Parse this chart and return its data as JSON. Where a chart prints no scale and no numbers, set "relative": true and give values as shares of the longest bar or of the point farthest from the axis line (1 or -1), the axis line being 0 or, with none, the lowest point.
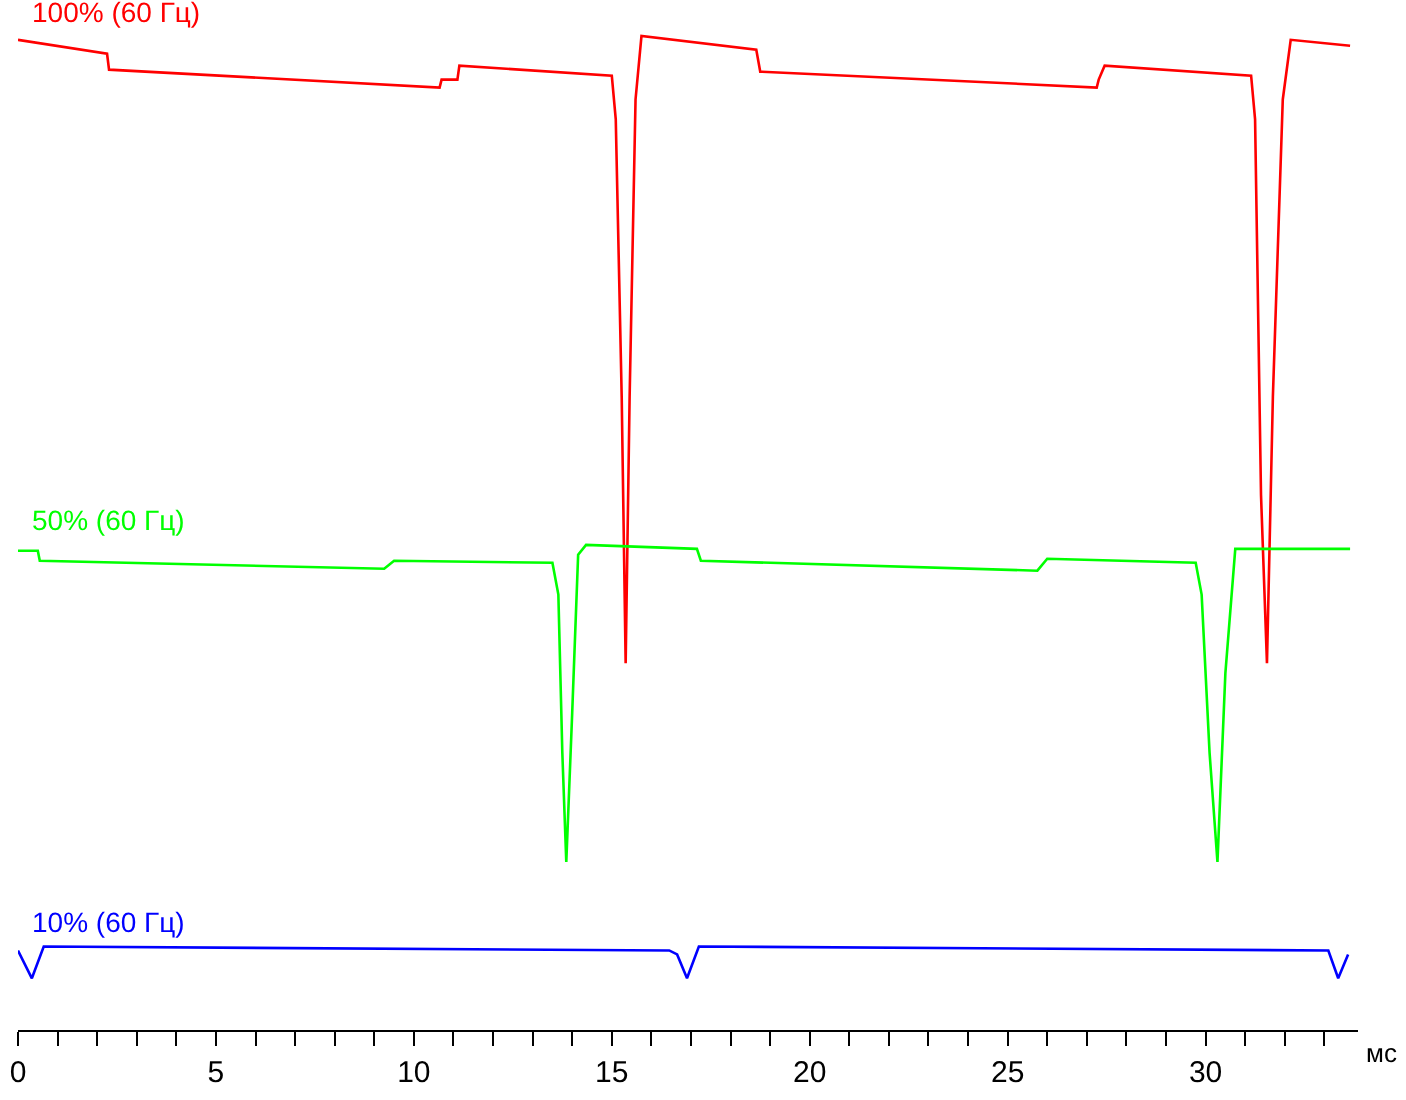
{
  "chart_data": {
    "type": "line",
    "relative": true,
    "xlabel": "мс",
    "legend": false,
    "marker": "none",
    "line_style": "solid",
    "xlim": [
      0,
      33.85
    ],
    "xticks": [
      0,
      {
        "value": 1,
        "label": null
      },
      {
        "value": 2,
        "label": null
      },
      {
        "value": 3,
        "label": null
      },
      {
        "value": 4,
        "label": null
      },
      5,
      {
        "value": 6,
        "label": null
      },
      {
        "value": 7,
        "label": null
      },
      {
        "value": 8,
        "label": null
      },
      {
        "value": 9,
        "label": null
      },
      10,
      {
        "value": 11,
        "label": null
      },
      {
        "value": 12,
        "label": null
      },
      {
        "value": 13,
        "label": null
      },
      {
        "value": 14,
        "label": null
      },
      15,
      {
        "value": 16,
        "label": null
      },
      {
        "value": 17,
        "label": null
      },
      {
        "value": 18,
        "label": null
      },
      {
        "value": 19,
        "label": null
      },
      20,
      {
        "value": 21,
        "label": null
      },
      {
        "value": 22,
        "label": null
      },
      {
        "value": 23,
        "label": null
      },
      {
        "value": 24,
        "label": null
      },
      25,
      {
        "value": 26,
        "label": null
      },
      {
        "value": 27,
        "label": null
      },
      {
        "value": 28,
        "label": null
      },
      {
        "value": 29,
        "label": null
      },
      30,
      {
        "value": 31,
        "label": null
      },
      {
        "value": 32,
        "label": null
      },
      {
        "value": 33,
        "label": null
      }
    ],
    "series": [
      {
        "name": "100% (60 Гц)",
        "color": "#ff0000",
        "x": [
          0,
          2.25,
          2.3,
          10.65,
          10.7,
          11.1,
          11.15,
          15.0,
          15.1,
          15.25,
          15.35,
          15.45,
          15.6,
          15.75,
          18.65,
          18.75,
          27.25,
          27.3,
          27.45,
          31.15,
          31.25,
          31.4,
          31.55,
          31.7,
          31.95,
          32.15,
          33.65
        ],
        "values": [
          0.996,
          0.982,
          0.966,
          0.948,
          0.956,
          0.956,
          0.97,
          0.96,
          0.916,
          0.637,
          0.369,
          0.637,
          0.936,
          1.0,
          0.986,
          0.964,
          0.948,
          0.956,
          0.97,
          0.96,
          0.916,
          0.538,
          0.369,
          0.637,
          0.936,
          0.996,
          0.99
        ]
      },
      {
        "name": "50% (60 Гц)",
        "color": "#00ff00",
        "x": [
          0,
          0.5,
          0.55,
          9.25,
          9.5,
          13.5,
          13.65,
          13.75,
          13.85,
          14.0,
          14.15,
          14.35,
          17.15,
          17.25,
          25.75,
          26.0,
          29.75,
          29.9,
          30.1,
          30.3,
          30.5,
          30.75,
          33.65
        ],
        "values": [
          0.482,
          0.482,
          0.472,
          0.464,
          0.472,
          0.47,
          0.438,
          0.279,
          0.169,
          0.319,
          0.478,
          0.488,
          0.484,
          0.472,
          0.462,
          0.474,
          0.47,
          0.438,
          0.279,
          0.169,
          0.359,
          0.484,
          0.484
        ]
      },
      {
        "name": "10% (60 Гц)",
        "color": "#0000ff",
        "x": [
          0,
          0.35,
          0.65,
          16.45,
          16.65,
          16.9,
          17.2,
          33.1,
          33.35,
          33.6
        ],
        "values": [
          0.08,
          0.052,
          0.084,
          0.08,
          0.076,
          0.052,
          0.084,
          0.08,
          0.052,
          0.076
        ]
      }
    ]
  }
}
